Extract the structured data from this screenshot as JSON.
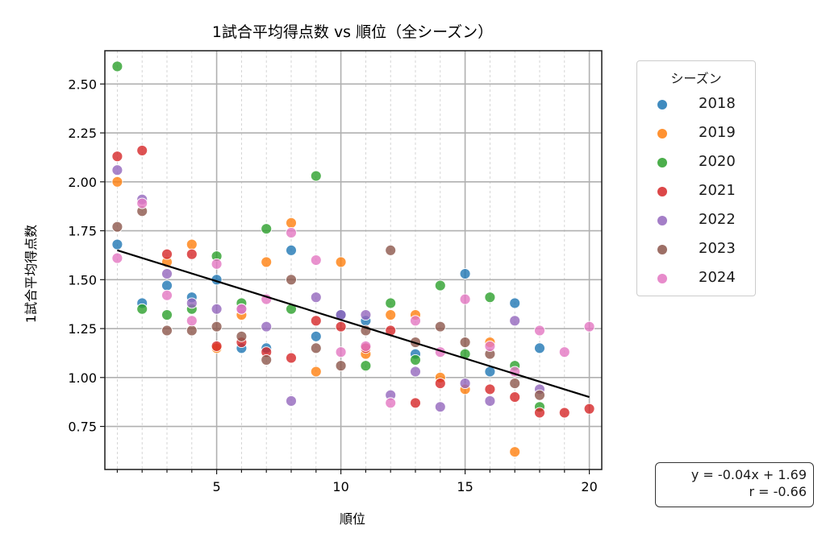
{
  "chart_data": {
    "type": "scatter",
    "title": "1試合平均得点数 vs 順位（全シーズン）",
    "xlabel": "順位",
    "ylabel": "1試合平均得点数",
    "xlim": [
      0.5,
      20.5
    ],
    "ylim": [
      0.53,
      2.67
    ],
    "xticks": [
      5,
      10,
      15,
      20
    ],
    "yticks": [
      0.75,
      1.0,
      1.25,
      1.5,
      1.75,
      2.0,
      2.25,
      2.5
    ],
    "ytick_labels": [
      "0.75",
      "1.00",
      "1.25",
      "1.50",
      "1.75",
      "2.00",
      "2.25",
      "2.50"
    ],
    "xtick_labels": [
      "5",
      "10",
      "15",
      "20"
    ],
    "grid": true,
    "legend": {
      "title": "シーズン",
      "placement": "outside-right-top"
    },
    "series": [
      {
        "name": "2018",
        "color": "#1f77b4",
        "points": [
          [
            1,
            1.68
          ],
          [
            2,
            1.38
          ],
          [
            3,
            1.47
          ],
          [
            4,
            1.41
          ],
          [
            5,
            1.5
          ],
          [
            6,
            1.15
          ],
          [
            7,
            1.15
          ],
          [
            8,
            1.65
          ],
          [
            9,
            1.21
          ],
          [
            10,
            1.32
          ],
          [
            11,
            1.29
          ],
          [
            13,
            1.12
          ],
          [
            15,
            1.53
          ],
          [
            16,
            1.03
          ],
          [
            17,
            1.38
          ],
          [
            18,
            1.15
          ]
        ]
      },
      {
        "name": "2019",
        "color": "#ff7f0e",
        "points": [
          [
            1,
            2.0
          ],
          [
            3,
            1.59
          ],
          [
            4,
            1.68
          ],
          [
            5,
            1.15
          ],
          [
            6,
            1.32
          ],
          [
            7,
            1.59
          ],
          [
            8,
            1.79
          ],
          [
            9,
            1.03
          ],
          [
            10,
            1.59
          ],
          [
            11,
            1.12
          ],
          [
            12,
            1.32
          ],
          [
            13,
            1.32
          ],
          [
            14,
            1.0
          ],
          [
            15,
            0.94
          ],
          [
            16,
            1.18
          ],
          [
            17,
            0.62
          ]
        ]
      },
      {
        "name": "2020",
        "color": "#2ca02c",
        "points": [
          [
            1,
            2.59
          ],
          [
            2,
            1.35
          ],
          [
            3,
            1.32
          ],
          [
            4,
            1.35
          ],
          [
            5,
            1.62
          ],
          [
            6,
            1.38
          ],
          [
            7,
            1.76
          ],
          [
            8,
            1.35
          ],
          [
            9,
            2.03
          ],
          [
            11,
            1.06
          ],
          [
            12,
            1.38
          ],
          [
            13,
            1.09
          ],
          [
            14,
            1.47
          ],
          [
            15,
            1.12
          ],
          [
            16,
            1.41
          ],
          [
            17,
            1.06
          ],
          [
            18,
            0.85
          ]
        ]
      },
      {
        "name": "2021",
        "color": "#d62728",
        "points": [
          [
            1,
            2.13
          ],
          [
            2,
            2.16
          ],
          [
            3,
            1.63
          ],
          [
            4,
            1.63
          ],
          [
            5,
            1.16
          ],
          [
            6,
            1.18
          ],
          [
            7,
            1.13
          ],
          [
            8,
            1.1
          ],
          [
            9,
            1.29
          ],
          [
            10,
            1.26
          ],
          [
            11,
            1.15
          ],
          [
            12,
            1.24
          ],
          [
            13,
            0.87
          ],
          [
            14,
            0.97
          ],
          [
            16,
            0.94
          ],
          [
            17,
            0.9
          ],
          [
            18,
            0.82
          ],
          [
            19,
            0.82
          ],
          [
            20,
            0.84
          ]
        ]
      },
      {
        "name": "2022",
        "color": "#9467bd",
        "points": [
          [
            1,
            2.06
          ],
          [
            2,
            1.91
          ],
          [
            3,
            1.53
          ],
          [
            4,
            1.38
          ],
          [
            5,
            1.35
          ],
          [
            6,
            1.35
          ],
          [
            7,
            1.26
          ],
          [
            8,
            0.88
          ],
          [
            9,
            1.41
          ],
          [
            10,
            1.32
          ],
          [
            11,
            1.32
          ],
          [
            12,
            0.91
          ],
          [
            13,
            1.03
          ],
          [
            14,
            0.85
          ],
          [
            15,
            0.97
          ],
          [
            16,
            0.88
          ],
          [
            17,
            1.29
          ],
          [
            18,
            0.94
          ]
        ]
      },
      {
        "name": "2023",
        "color": "#8c564b",
        "points": [
          [
            1,
            1.77
          ],
          [
            2,
            1.85
          ],
          [
            3,
            1.24
          ],
          [
            4,
            1.24
          ],
          [
            5,
            1.26
          ],
          [
            6,
            1.21
          ],
          [
            7,
            1.09
          ],
          [
            8,
            1.5
          ],
          [
            9,
            1.15
          ],
          [
            10,
            1.06
          ],
          [
            11,
            1.24
          ],
          [
            12,
            1.65
          ],
          [
            13,
            1.18
          ],
          [
            14,
            1.26
          ],
          [
            15,
            1.18
          ],
          [
            16,
            1.12
          ],
          [
            17,
            0.97
          ],
          [
            18,
            0.91
          ]
        ]
      },
      {
        "name": "2024",
        "color": "#e377c2",
        "points": [
          [
            1,
            1.61
          ],
          [
            2,
            1.89
          ],
          [
            3,
            1.42
          ],
          [
            4,
            1.29
          ],
          [
            5,
            1.58
          ],
          [
            6,
            1.35
          ],
          [
            7,
            1.4
          ],
          [
            8,
            1.74
          ],
          [
            9,
            1.6
          ],
          [
            10,
            1.13
          ],
          [
            11,
            1.16
          ],
          [
            12,
            0.87
          ],
          [
            13,
            1.29
          ],
          [
            14,
            1.13
          ],
          [
            15,
            1.4
          ],
          [
            16,
            1.16
          ],
          [
            17,
            1.03
          ],
          [
            18,
            1.24
          ],
          [
            19,
            1.13
          ],
          [
            20,
            1.26
          ]
        ]
      }
    ],
    "regression": {
      "slope": -0.04,
      "intercept": 1.69,
      "x_range": [
        1,
        20
      ],
      "y_range": [
        1.65,
        0.9
      ],
      "color": "#000000"
    },
    "annotation": {
      "line1": "y = -0.04x + 1.69",
      "line2": "r = -0.66"
    }
  }
}
